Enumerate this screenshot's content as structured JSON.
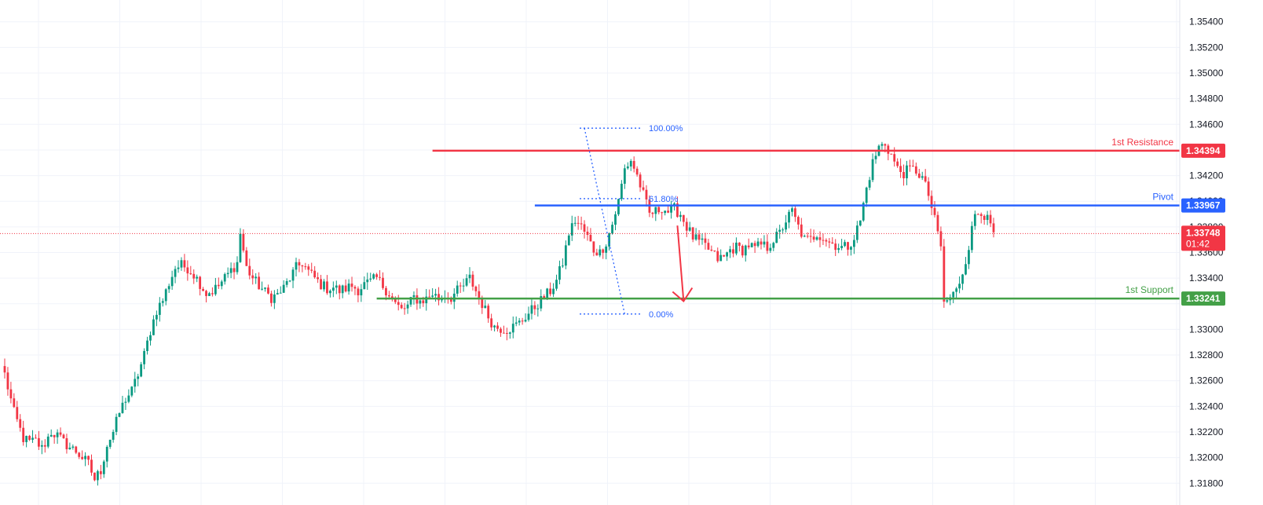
{
  "chart_data": {
    "type": "candlestick",
    "ylim": [
      1.3163,
      1.3557
    ],
    "x_bar_count": 250,
    "grid": true,
    "y_ticks": [
      "1.35400",
      "1.35200",
      "1.35000",
      "1.34800",
      "1.34600",
      "1.34200",
      "1.34000",
      "1.33800",
      "1.33600",
      "1.33400",
      "1.33000",
      "1.32800",
      "1.32600",
      "1.32400",
      "1.32200",
      "1.32000",
      "1.31800"
    ],
    "y_tick_values": [
      1.354,
      1.352,
      1.35,
      1.348,
      1.346,
      1.342,
      1.34,
      1.338,
      1.336,
      1.334,
      1.33,
      1.328,
      1.326,
      1.324,
      1.322,
      1.32,
      1.318
    ],
    "colors": {
      "up": "#089981",
      "down": "#f23645",
      "resistance": "#f23645",
      "pivot": "#2962ff",
      "support": "#43a047",
      "fib": "#2962ff",
      "price": "#f23645",
      "grid": "#f0f3fa",
      "axis_text": "#131722"
    },
    "levels": [
      {
        "name": "resistance",
        "label": "1st Resistance",
        "price": 1.34394,
        "price_label": "1.34394",
        "start_bar": 138
      },
      {
        "name": "pivot",
        "label": "Pivot",
        "price": 1.33967,
        "price_label": "1.33967",
        "start_bar": 171
      },
      {
        "name": "support",
        "label": "1st Support",
        "price": 1.33241,
        "price_label": "1.33241",
        "start_bar": 120
      }
    ],
    "current_price": {
      "price": 1.33748,
      "label": "1.33748",
      "countdown": "01:42"
    },
    "fib": {
      "high_bar": 187,
      "high_price": 1.3457,
      "low_bar": 200,
      "low_price": 1.3312,
      "levels": [
        {
          "label": "100.00%",
          "price": 1.3457
        },
        {
          "label": "61.80%",
          "price": 1.3402
        },
        {
          "label": "0.00%",
          "price": 1.3312
        }
      ]
    },
    "arrow": {
      "from_bar": 217,
      "from_price": 1.3381,
      "to_bar": 219,
      "to_price": 1.3322
    },
    "anchors": [
      [
        0,
        1.3265
      ],
      [
        3,
        1.3235
      ],
      [
        6,
        1.3215
      ],
      [
        8,
        1.3212
      ],
      [
        10,
        1.3213
      ],
      [
        12,
        1.3207
      ],
      [
        15,
        1.322
      ],
      [
        17,
        1.3217
      ],
      [
        19,
        1.3212
      ],
      [
        21,
        1.3208
      ],
      [
        23,
        1.3205
      ],
      [
        25,
        1.32
      ],
      [
        27,
        1.3195
      ],
      [
        29,
        1.3183
      ],
      [
        31,
        1.319
      ],
      [
        33,
        1.321
      ],
      [
        35,
        1.322
      ],
      [
        37,
        1.3235
      ],
      [
        39,
        1.3246
      ],
      [
        41,
        1.3252
      ],
      [
        43,
        1.3265
      ],
      [
        45,
        1.328
      ],
      [
        47,
        1.3299
      ],
      [
        49,
        1.3315
      ],
      [
        51,
        1.3323
      ],
      [
        53,
        1.3336
      ],
      [
        55,
        1.3348
      ],
      [
        57,
        1.335
      ],
      [
        59,
        1.3348
      ],
      [
        61,
        1.3343
      ],
      [
        63,
        1.3336
      ],
      [
        65,
        1.3328
      ],
      [
        67,
        1.333
      ],
      [
        69,
        1.3334
      ],
      [
        71,
        1.334
      ],
      [
        73,
        1.3346
      ],
      [
        75,
        1.3352
      ],
      [
        76,
        1.3375
      ],
      [
        78,
        1.3348
      ],
      [
        80,
        1.334
      ],
      [
        82,
        1.3334
      ],
      [
        84,
        1.3329
      ],
      [
        86,
        1.3325
      ],
      [
        88,
        1.3327
      ],
      [
        90,
        1.3332
      ],
      [
        92,
        1.334
      ],
      [
        94,
        1.3348
      ],
      [
        96,
        1.3352
      ],
      [
        98,
        1.3345
      ],
      [
        100,
        1.334
      ],
      [
        102,
        1.3335
      ],
      [
        104,
        1.3332
      ],
      [
        106,
        1.3333
      ],
      [
        108,
        1.333
      ],
      [
        110,
        1.3332
      ],
      [
        112,
        1.3334
      ],
      [
        114,
        1.3331
      ],
      [
        116,
        1.3335
      ],
      [
        118,
        1.3337
      ],
      [
        120,
        1.334
      ],
      [
        122,
        1.3334
      ],
      [
        124,
        1.3328
      ],
      [
        126,
        1.332
      ],
      [
        128,
        1.3315
      ],
      [
        130,
        1.3318
      ],
      [
        132,
        1.3325
      ],
      [
        134,
        1.3322
      ],
      [
        136,
        1.3324
      ],
      [
        138,
        1.3328
      ],
      [
        140,
        1.3324
      ],
      [
        142,
        1.3327
      ],
      [
        144,
        1.3325
      ],
      [
        146,
        1.333
      ],
      [
        148,
        1.3334
      ],
      [
        150,
        1.334
      ],
      [
        152,
        1.333
      ],
      [
        154,
        1.332
      ],
      [
        156,
        1.331
      ],
      [
        158,
        1.3302
      ],
      [
        160,
        1.3301
      ],
      [
        162,
        1.33
      ],
      [
        164,
        1.3302
      ],
      [
        166,
        1.3305
      ],
      [
        168,
        1.331
      ],
      [
        170,
        1.3315
      ],
      [
        172,
        1.332
      ],
      [
        174,
        1.3325
      ],
      [
        176,
        1.333
      ],
      [
        178,
        1.3338
      ],
      [
        180,
        1.3352
      ],
      [
        182,
        1.3375
      ],
      [
        184,
        1.3385
      ],
      [
        186,
        1.338
      ],
      [
        188,
        1.3372
      ],
      [
        190,
        1.3362
      ],
      [
        192,
        1.336
      ],
      [
        194,
        1.3368
      ],
      [
        196,
        1.3382
      ],
      [
        198,
        1.34
      ],
      [
        200,
        1.3425
      ],
      [
        202,
        1.3432
      ],
      [
        204,
        1.342
      ],
      [
        206,
        1.3405
      ],
      [
        208,
        1.339
      ],
      [
        210,
        1.3392
      ],
      [
        212,
        1.3395
      ],
      [
        214,
        1.3392
      ],
      [
        216,
        1.3394
      ],
      [
        218,
        1.339
      ],
      [
        220,
        1.338
      ],
      [
        222,
        1.3372
      ],
      [
        224,
        1.3368
      ],
      [
        226,
        1.3365
      ],
      [
        228,
        1.336
      ],
      [
        230,
        1.3355
      ],
      [
        232,
        1.3356
      ],
      [
        234,
        1.3362
      ],
      [
        236,
        1.3364
      ],
      [
        238,
        1.3362
      ],
      [
        240,
        1.3366
      ],
      [
        242,
        1.3363
      ],
      [
        244,
        1.3366
      ],
      [
        246,
        1.3364
      ],
      [
        248,
        1.337
      ],
      [
        250,
        1.3375
      ],
      [
        252,
        1.3385
      ],
      [
        254,
        1.3392
      ],
      [
        256,
        1.338
      ],
      [
        258,
        1.337
      ],
      [
        260,
        1.337
      ],
      [
        262,
        1.3375
      ],
      [
        264,
        1.3372
      ],
      [
        266,
        1.3368
      ],
      [
        268,
        1.3366
      ],
      [
        270,
        1.3364
      ],
      [
        272,
        1.3365
      ],
      [
        274,
        1.3372
      ],
      [
        276,
        1.3385
      ],
      [
        278,
        1.341
      ],
      [
        280,
        1.343
      ],
      [
        282,
        1.3442
      ],
      [
        284,
        1.3445
      ],
      [
        286,
        1.3436
      ],
      [
        288,
        1.3425
      ],
      [
        290,
        1.3422
      ],
      [
        292,
        1.3425
      ],
      [
        294,
        1.3424
      ],
      [
        296,
        1.3418
      ],
      [
        298,
        1.3405
      ],
      [
        300,
        1.3385
      ],
      [
        302,
        1.3365
      ],
      [
        303,
        1.332
      ],
      [
        305,
        1.3325
      ],
      [
        307,
        1.333
      ],
      [
        309,
        1.3345
      ],
      [
        311,
        1.3365
      ],
      [
        313,
        1.339
      ],
      [
        315,
        1.3393
      ],
      [
        317,
        1.3385
      ],
      [
        319,
        1.3375
      ]
    ]
  }
}
